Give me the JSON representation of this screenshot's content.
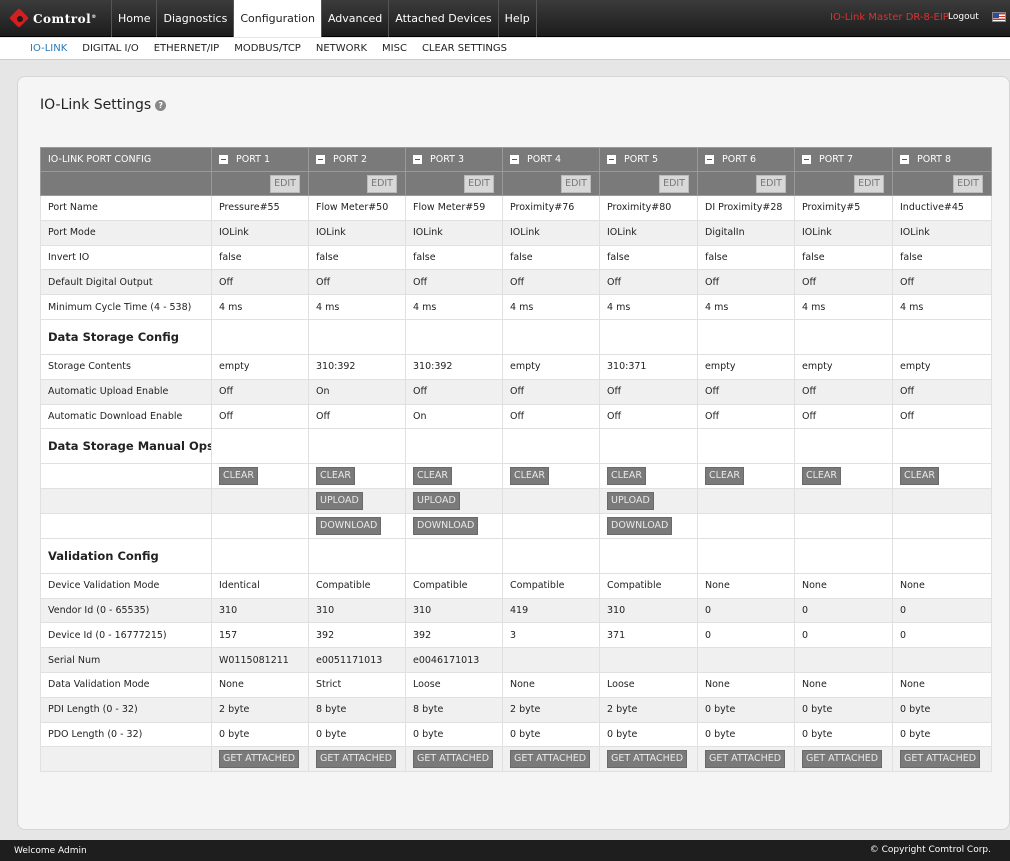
{
  "brand": {
    "logo_text": "Comtrol",
    "trademark": "®"
  },
  "nav": {
    "items": [
      {
        "label": "Home"
      },
      {
        "label": "Diagnostics"
      },
      {
        "label": "Configuration"
      },
      {
        "label": "Advanced"
      },
      {
        "label": "Attached Devices"
      },
      {
        "label": "Help"
      }
    ],
    "active": "Configuration",
    "device_name": "IO-Link Master DR-8-EIP",
    "logout": "Logout"
  },
  "subnav": {
    "items": [
      {
        "label": "IO-LINK"
      },
      {
        "label": "DIGITAL I/O"
      },
      {
        "label": "ETHERNET/IP"
      },
      {
        "label": "MODBUS/TCP"
      },
      {
        "label": "NETWORK"
      },
      {
        "label": "MISC"
      },
      {
        "label": "CLEAR SETTINGS"
      }
    ],
    "active": "IO-LINK"
  },
  "page": {
    "title": "IO-Link Settings",
    "help": "?"
  },
  "table": {
    "corner_label": "IO-LINK PORT CONFIG",
    "edit_label": "EDIT",
    "ports": [
      "PORT 1",
      "PORT 2",
      "PORT 3",
      "PORT 4",
      "PORT 5",
      "PORT 6",
      "PORT 7",
      "PORT 8"
    ],
    "rows_port": [
      {
        "label": "Port Name",
        "values": [
          "Pressure#55",
          "Flow Meter#50",
          "Flow Meter#59",
          "Proximity#76",
          "Proximity#80",
          "DI Proximity#28",
          "Proximity#5",
          "Inductive#45"
        ]
      },
      {
        "label": "Port Mode",
        "values": [
          "IOLink",
          "IOLink",
          "IOLink",
          "IOLink",
          "IOLink",
          "DigitalIn",
          "IOLink",
          "IOLink"
        ]
      },
      {
        "label": "Invert IO",
        "values": [
          "false",
          "false",
          "false",
          "false",
          "false",
          "false",
          "false",
          "false"
        ]
      },
      {
        "label": "Default Digital Output",
        "values": [
          "Off",
          "Off",
          "Off",
          "Off",
          "Off",
          "Off",
          "Off",
          "Off"
        ]
      },
      {
        "label": "Minimum Cycle Time (4 - 538)",
        "values": [
          "4 ms",
          "4 ms",
          "4 ms",
          "4 ms",
          "4 ms",
          "4 ms",
          "4 ms",
          "4 ms"
        ]
      }
    ],
    "section_storage": "Data Storage Config",
    "rows_storage": [
      {
        "label": "Storage Contents",
        "values": [
          "empty",
          "310:392",
          "310:392",
          "empty",
          "310:371",
          "empty",
          "empty",
          "empty"
        ]
      },
      {
        "label": "Automatic Upload Enable",
        "values": [
          "Off",
          "On",
          "Off",
          "Off",
          "Off",
          "Off",
          "Off",
          "Off"
        ]
      },
      {
        "label": "Automatic Download Enable",
        "values": [
          "Off",
          "Off",
          "On",
          "Off",
          "Off",
          "Off",
          "Off",
          "Off"
        ]
      }
    ],
    "section_manual": "Data Storage Manual Ops",
    "manual_ops": {
      "clear_label": "CLEAR",
      "upload_label": "UPLOAD",
      "download_label": "DOWNLOAD",
      "clear_ports": [
        true,
        true,
        true,
        true,
        true,
        true,
        true,
        true
      ],
      "upload_ports": [
        false,
        true,
        true,
        false,
        true,
        false,
        false,
        false
      ],
      "download_ports": [
        false,
        true,
        true,
        false,
        true,
        false,
        false,
        false
      ]
    },
    "section_validation": "Validation Config",
    "rows_validation": [
      {
        "label": "Device Validation Mode",
        "values": [
          "Identical",
          "Compatible",
          "Compatible",
          "Compatible",
          "Compatible",
          "None",
          "None",
          "None"
        ]
      },
      {
        "label": "Vendor Id (0 - 65535)",
        "values": [
          "310",
          "310",
          "310",
          "419",
          "310",
          "0",
          "0",
          "0"
        ]
      },
      {
        "label": "Device Id (0 - 16777215)",
        "values": [
          "157",
          "392",
          "392",
          "3",
          "371",
          "0",
          "0",
          "0"
        ]
      },
      {
        "label": "Serial Num",
        "values": [
          "W0115081211",
          "e0051171013",
          "e0046171013",
          "",
          "",
          "",
          "",
          ""
        ]
      },
      {
        "label": "Data Validation Mode",
        "values": [
          "None",
          "Strict",
          "Loose",
          "None",
          "Loose",
          "None",
          "None",
          "None"
        ]
      },
      {
        "label": "PDI Length (0 - 32)",
        "values": [
          "2 byte",
          "8 byte",
          "8 byte",
          "2 byte",
          "2 byte",
          "0 byte",
          "0 byte",
          "0 byte"
        ]
      },
      {
        "label": "PDO Length (0 - 32)",
        "values": [
          "0 byte",
          "0 byte",
          "0 byte",
          "0 byte",
          "0 byte",
          "0 byte",
          "0 byte",
          "0 byte"
        ]
      }
    ],
    "get_attached_label": "GET ATTACHED"
  },
  "footer": {
    "welcome": "Welcome Admin",
    "copyright": "© Copyright Comtrol Corp."
  }
}
